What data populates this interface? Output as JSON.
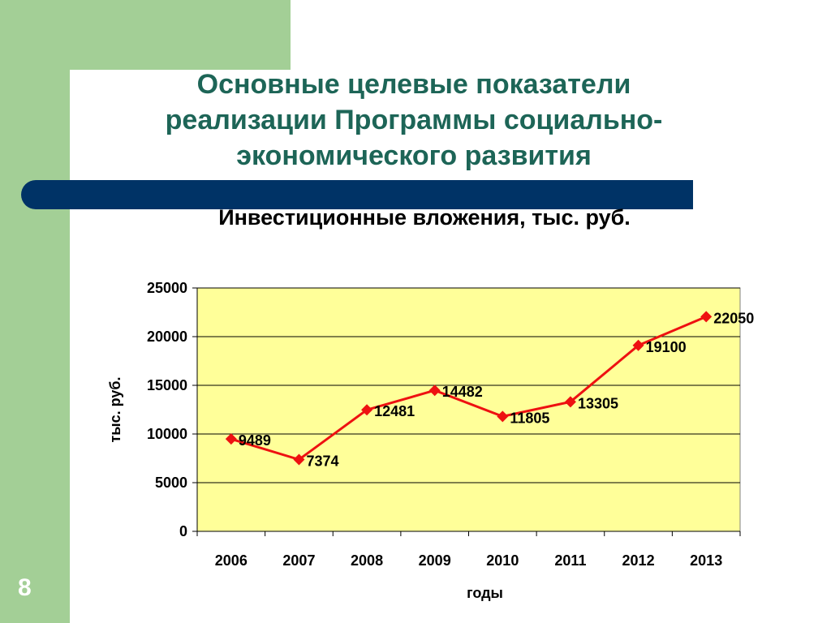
{
  "slide": {
    "title_lines": [
      "Основные целевые показатели",
      "реализации Программы социально-",
      "экономического развития"
    ],
    "subtitle": "Инвестиционные вложения, тыс. руб.",
    "page_number": "8",
    "colors": {
      "green": "#a3cf96",
      "navy": "#003366",
      "title": "#1d6557"
    }
  },
  "chart_data": {
    "type": "line",
    "title": "",
    "categories": [
      "2006",
      "2007",
      "2008",
      "2009",
      "2010",
      "2011",
      "2012",
      "2013"
    ],
    "series": [
      {
        "values": [
          9489,
          7374,
          12481,
          14482,
          11805,
          13305,
          19100,
          22050
        ],
        "color": "#ee1111"
      }
    ],
    "data_labels": [
      "9489",
      "7374",
      "12481",
      "14482",
      "11805",
      "13305",
      "19100",
      "22050"
    ],
    "xlabel": "годы",
    "ylabel": "тыс. руб.",
    "ylim": [
      0,
      25000
    ],
    "yticks": [
      0,
      5000,
      10000,
      15000,
      20000,
      25000
    ],
    "grid": true,
    "plot_background": "#ffff99",
    "marker": "diamond"
  }
}
